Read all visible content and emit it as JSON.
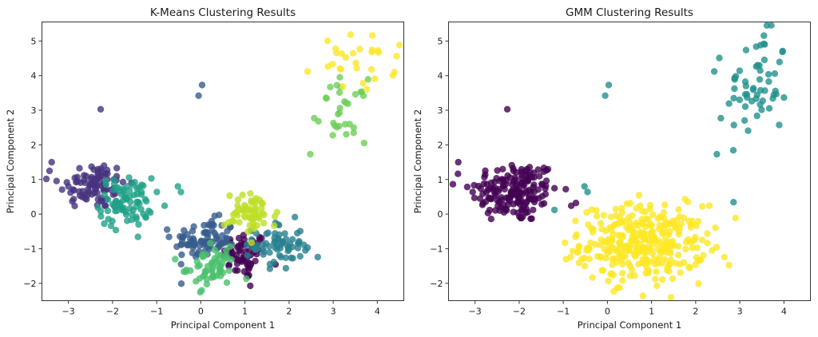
{
  "chart_data": [
    {
      "type": "scatter",
      "title": "K-Means Clustering Results",
      "xlabel": "Principal Component 1",
      "ylabel": "Principal Component 2",
      "xlim": [
        -3.6,
        4.6
      ],
      "ylim": [
        -2.5,
        5.55
      ],
      "xticks": [
        -3,
        -2,
        -1,
        0,
        1,
        2,
        3,
        4
      ],
      "yticks": [
        -2,
        -1,
        0,
        1,
        2,
        3,
        4,
        5
      ],
      "xtick_labels": [
        "−3",
        "−2",
        "−1",
        "0",
        "1",
        "2",
        "3",
        "4"
      ],
      "ytick_labels": [
        "−2",
        "−1",
        "0",
        "1",
        "2",
        "3",
        "4",
        "5"
      ],
      "grid": false,
      "legend": "none",
      "marker_alpha": 0.8,
      "clusters": [
        {
          "name": "cluster-0",
          "color": "#440154",
          "center": [
            1.0,
            -1.2
          ],
          "spread": [
            0.25,
            0.35
          ],
          "n": 60
        },
        {
          "name": "cluster-1",
          "color": "#46327e",
          "center": [
            -2.45,
            0.85
          ],
          "spread": [
            0.38,
            0.35
          ],
          "n": 90
        },
        {
          "name": "cluster-2",
          "color": "#365c8d",
          "center": [
            0.1,
            -0.75
          ],
          "spread": [
            0.35,
            0.3
          ],
          "n": 85
        },
        {
          "name": "cluster-3",
          "color": "#277f8e",
          "center": [
            1.75,
            -0.9
          ],
          "spread": [
            0.28,
            0.35
          ],
          "n": 65
        },
        {
          "name": "cluster-4",
          "color": "#1fa187",
          "center": [
            -1.7,
            0.35
          ],
          "spread": [
            0.3,
            0.35
          ],
          "n": 85
        },
        {
          "name": "cluster-5",
          "color": "#4ac16d",
          "center": [
            0.25,
            -1.55
          ],
          "spread": [
            0.28,
            0.28
          ],
          "n": 55
        },
        {
          "name": "cluster-5b",
          "color": "#6ece58",
          "center": [
            3.25,
            3.0
          ],
          "spread": [
            0.25,
            0.45
          ],
          "n": 30
        },
        {
          "name": "cluster-6",
          "color": "#bddf26",
          "center": [
            1.15,
            0.0
          ],
          "spread": [
            0.3,
            0.3
          ],
          "n": 60
        },
        {
          "name": "cluster-7",
          "color": "#fde725",
          "center": [
            3.6,
            4.35
          ],
          "spread": [
            0.4,
            0.4
          ],
          "n": 28
        }
      ],
      "outliers": [
        {
          "x": -2.27,
          "y": 3.03,
          "color": "#46327e"
        },
        {
          "x": -0.05,
          "y": 3.42,
          "color": "#365c8d"
        },
        {
          "x": 0.03,
          "y": 3.73,
          "color": "#365c8d"
        },
        {
          "x": 2.42,
          "y": 4.12,
          "color": "#fde725"
        },
        {
          "x": 2.48,
          "y": 1.73,
          "color": "#6ece58"
        },
        {
          "x": 2.57,
          "y": 2.77,
          "color": "#6ece58"
        },
        {
          "x": -0.52,
          "y": 0.8,
          "color": "#1fa187"
        },
        {
          "x": -0.45,
          "y": 0.64,
          "color": "#1fa187"
        },
        {
          "x": -0.82,
          "y": 0.24,
          "color": "#1fa187"
        },
        {
          "x": -3.38,
          "y": 1.5,
          "color": "#46327e"
        },
        {
          "x": 2.65,
          "y": -1.24,
          "color": "#277f8e"
        },
        {
          "x": 2.37,
          "y": -1.05,
          "color": "#277f8e"
        },
        {
          "x": -0.58,
          "y": -1.3,
          "color": "#4ac16d"
        },
        {
          "x": -0.72,
          "y": -0.66,
          "color": "#365c8d"
        },
        {
          "x": 1.12,
          "y": -2.07,
          "color": "#440154"
        }
      ]
    },
    {
      "type": "scatter",
      "title": "GMM Clustering Results",
      "xlabel": "Principal Component 1",
      "ylabel": "Principal Component 2",
      "xlim": [
        -3.6,
        4.6
      ],
      "ylim": [
        -2.5,
        5.55
      ],
      "xticks": [
        -3,
        -2,
        -1,
        0,
        1,
        2,
        3,
        4
      ],
      "yticks": [
        -2,
        -1,
        0,
        1,
        2,
        3,
        4,
        5
      ],
      "xtick_labels": [
        "−3",
        "−2",
        "−1",
        "0",
        "1",
        "2",
        "3",
        "4"
      ],
      "ytick_labels": [
        "−2",
        "−1",
        "0",
        "1",
        "2",
        "3",
        "4",
        "5"
      ],
      "grid": false,
      "legend": "none",
      "marker_alpha": 0.8,
      "clusters": [
        {
          "name": "cluster-0",
          "color": "#440154",
          "center": [
            -2.1,
            0.65
          ],
          "spread": [
            0.5,
            0.45
          ],
          "n": 175
        },
        {
          "name": "cluster-1",
          "color": "#21918c",
          "center": [
            3.4,
            3.7
          ],
          "spread": [
            0.35,
            0.8
          ],
          "n": 58
        },
        {
          "name": "cluster-2",
          "color": "#fde725",
          "center": [
            0.8,
            -0.85
          ],
          "spread": [
            0.7,
            0.55
          ],
          "n": 325
        }
      ],
      "outliers": [
        {
          "x": -2.27,
          "y": 3.03,
          "color": "#440154"
        },
        {
          "x": -0.05,
          "y": 3.42,
          "color": "#21918c"
        },
        {
          "x": 0.03,
          "y": 3.73,
          "color": "#21918c"
        },
        {
          "x": 2.42,
          "y": 4.12,
          "color": "#21918c"
        },
        {
          "x": 2.48,
          "y": 1.73,
          "color": "#21918c"
        },
        {
          "x": 2.57,
          "y": 2.77,
          "color": "#21918c"
        },
        {
          "x": -0.52,
          "y": 0.8,
          "color": "#21918c"
        },
        {
          "x": -0.45,
          "y": 0.64,
          "color": "#21918c"
        },
        {
          "x": -1.2,
          "y": 0.12,
          "color": "#21918c"
        },
        {
          "x": -0.82,
          "y": 0.24,
          "color": "#440154"
        },
        {
          "x": -3.38,
          "y": 1.5,
          "color": "#440154"
        },
        {
          "x": 2.65,
          "y": -1.24,
          "color": "#fde725"
        },
        {
          "x": 2.37,
          "y": -1.05,
          "color": "#fde725"
        },
        {
          "x": -0.58,
          "y": -1.3,
          "color": "#fde725"
        },
        {
          "x": -0.72,
          "y": -0.66,
          "color": "#fde725"
        },
        {
          "x": 1.12,
          "y": -2.07,
          "color": "#fde725"
        }
      ]
    }
  ]
}
